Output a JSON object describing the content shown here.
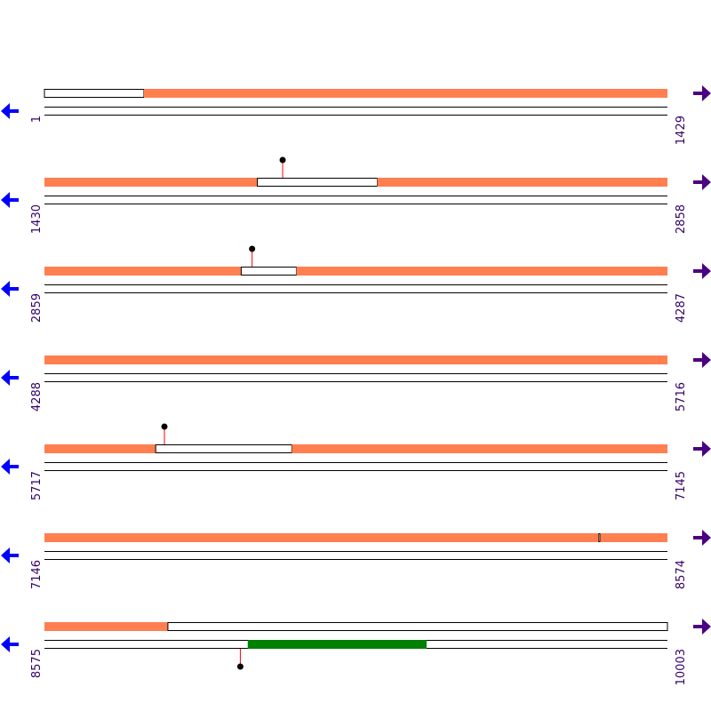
{
  "colors": {
    "orf": "#ff7f50",
    "gene_feature": "#008000",
    "marker_stem": "#ff0000",
    "marker_head": "#000000",
    "track_line": "#000000",
    "label_text": "#330066",
    "left_arrow": "#0000ff",
    "right_arrow": "#4b0082"
  },
  "icons": {
    "left": "left-arrow-icon",
    "right": "right-arrow-icon"
  },
  "sequence": {
    "total_length": 10003,
    "rows": [
      {
        "start": "1",
        "end": "1429",
        "forward": [
          [
            1,
            229
          ],
          [
            229,
            1429
          ]
        ],
        "forward_fill": [
          false,
          true
        ],
        "reverse_blocks": [],
        "markers": []
      },
      {
        "start": "1430",
        "end": "2858",
        "forward": [
          [
            1430,
            1918
          ],
          [
            1918,
            2193
          ],
          [
            2193,
            2858
          ]
        ],
        "forward_fill": [
          true,
          false,
          true
        ],
        "reverse_blocks": [],
        "markers": [
          {
            "pos": 1976,
            "strand": "forward"
          }
        ]
      },
      {
        "start": "2859",
        "end": "4287",
        "forward": [
          [
            2859,
            3310
          ],
          [
            3310,
            3437
          ],
          [
            3437,
            4287
          ]
        ],
        "forward_fill": [
          true,
          false,
          true
        ],
        "reverse_blocks": [],
        "markers": [
          {
            "pos": 3335,
            "strand": "forward"
          }
        ]
      },
      {
        "start": "4288",
        "end": "5716",
        "forward": [
          [
            4288,
            5716
          ]
        ],
        "forward_fill": [
          true
        ],
        "reverse_blocks": [],
        "markers": []
      },
      {
        "start": "5717",
        "end": "7145",
        "forward": [
          [
            5717,
            5972
          ],
          [
            5972,
            6284
          ],
          [
            6284,
            7145
          ]
        ],
        "forward_fill": [
          true,
          false,
          true
        ],
        "reverse_blocks": [],
        "markers": [
          {
            "pos": 5992,
            "strand": "forward"
          }
        ]
      },
      {
        "start": "7146",
        "end": "8574",
        "forward": [
          [
            7146,
            8417
          ],
          [
            8417,
            8420
          ],
          [
            8420,
            8574
          ]
        ],
        "forward_fill": [
          true,
          false,
          true
        ],
        "reverse_blocks": [],
        "markers": []
      },
      {
        "start": "8575",
        "end": "10003",
        "forward": [
          [
            8575,
            8858
          ],
          [
            8858,
            10003
          ]
        ],
        "forward_fill": [
          true,
          false
        ],
        "reverse_blocks": [
          [
            9041,
            9451
          ]
        ],
        "markers": [
          {
            "pos": 9024,
            "strand": "reverse"
          }
        ]
      }
    ]
  }
}
